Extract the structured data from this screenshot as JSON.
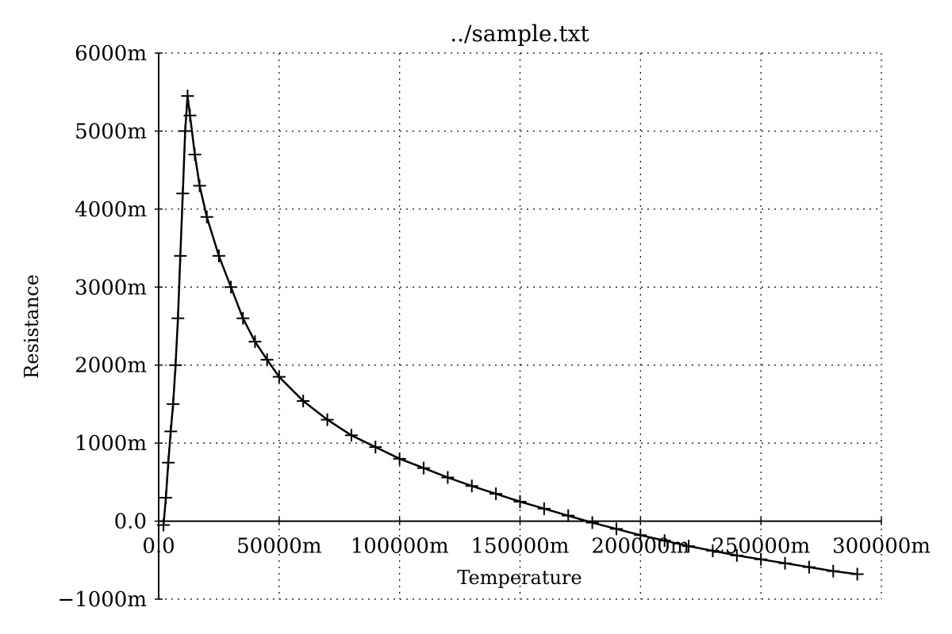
{
  "chart_data": {
    "type": "scatter",
    "title": "../sample.txt",
    "xlabel": "Temperature",
    "ylabel": "Resistance",
    "xlim": [
      0,
      300000
    ],
    "ylim": [
      -1000,
      6000
    ],
    "grid": true,
    "grid_style": "dotted",
    "color": "#000000",
    "marker": "plus",
    "line_width_note": "solid line connecting points",
    "x_ticks": [
      0,
      50000,
      100000,
      150000,
      200000,
      250000,
      300000
    ],
    "x_tick_labels": [
      "0.0",
      "50000m",
      "100000m",
      "150000m",
      "200000m",
      "250000m",
      "300000m"
    ],
    "y_ticks": [
      -1000,
      0,
      1000,
      2000,
      3000,
      4000,
      5000,
      6000
    ],
    "y_tick_labels": [
      "−1000m",
      "0.0",
      "1000m",
      "2000m",
      "3000m",
      "4000m",
      "5000m",
      "6000m"
    ],
    "series": [
      {
        "points": [
          [
            2000,
            -50
          ],
          [
            3000,
            300
          ],
          [
            4000,
            750
          ],
          [
            5000,
            1150
          ],
          [
            6000,
            1500
          ],
          [
            7000,
            2000
          ],
          [
            8000,
            2600
          ],
          [
            9000,
            3400
          ],
          [
            10000,
            4200
          ],
          [
            11000,
            5000
          ],
          [
            12000,
            5450
          ],
          [
            13000,
            5200
          ],
          [
            15000,
            4700
          ],
          [
            17000,
            4300
          ],
          [
            20000,
            3900
          ],
          [
            25000,
            3400
          ],
          [
            30000,
            3000
          ],
          [
            35000,
            2600
          ],
          [
            40000,
            2300
          ],
          [
            45000,
            2070
          ],
          [
            50000,
            1850
          ],
          [
            60000,
            1540
          ],
          [
            70000,
            1300
          ],
          [
            80000,
            1100
          ],
          [
            90000,
            950
          ],
          [
            100000,
            800
          ],
          [
            110000,
            680
          ],
          [
            120000,
            560
          ],
          [
            130000,
            450
          ],
          [
            140000,
            350
          ],
          [
            150000,
            250
          ],
          [
            160000,
            160
          ],
          [
            170000,
            70
          ],
          [
            180000,
            -20
          ],
          [
            190000,
            -100
          ],
          [
            200000,
            -180
          ],
          [
            210000,
            -250
          ],
          [
            220000,
            -320
          ],
          [
            230000,
            -380
          ],
          [
            240000,
            -440
          ],
          [
            250000,
            -490
          ],
          [
            260000,
            -540
          ],
          [
            270000,
            -590
          ],
          [
            280000,
            -640
          ],
          [
            290000,
            -680
          ]
        ]
      }
    ]
  }
}
